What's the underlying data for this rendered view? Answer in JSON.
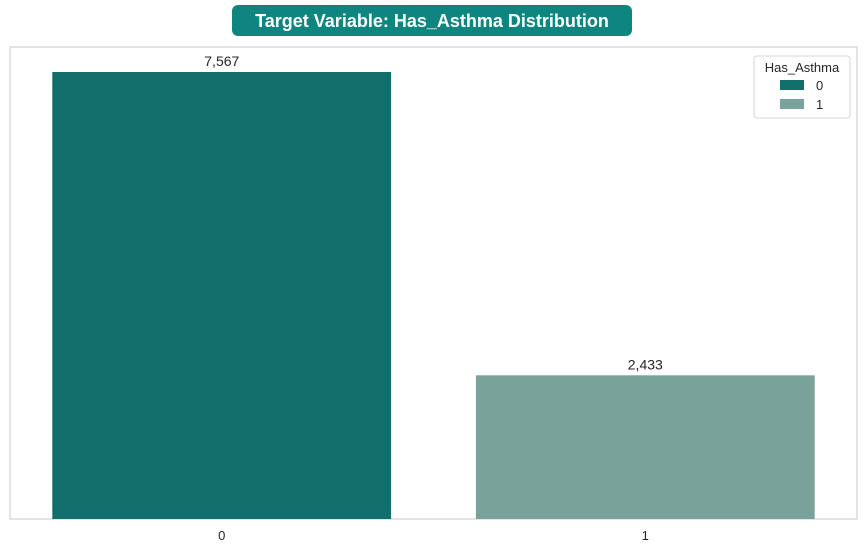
{
  "chart_data": {
    "type": "bar",
    "title": "Target Variable: Has_Asthma Distribution",
    "xlabel": "",
    "ylabel": "",
    "categories": [
      "0",
      "1"
    ],
    "values": [
      7567,
      2433
    ],
    "data_labels": [
      "7,567",
      "2,433"
    ],
    "ylim": [
      0,
      8000
    ],
    "grid": false,
    "legend": {
      "title": "Has_Asthma",
      "placement": "top-right",
      "entries": [
        "0",
        "1"
      ]
    },
    "colors": {
      "title_background": "#0f8580",
      "title_text": "#ffffff",
      "bars": [
        "#136f6c",
        "#79a29b"
      ],
      "axes_border": "#cfd2d6"
    }
  }
}
